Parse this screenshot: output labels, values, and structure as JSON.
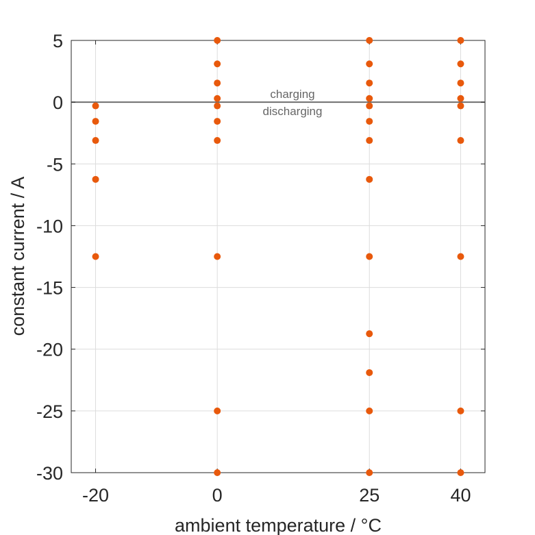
{
  "chart_data": {
    "type": "scatter",
    "title": "",
    "xlabel": "ambient temperature / °C",
    "ylabel": "constant current / A",
    "x_ticks": [
      -20,
      0,
      25,
      40
    ],
    "y_ticks": [
      5,
      0,
      -5,
      -10,
      -15,
      -20,
      -25,
      -30
    ],
    "xlim": [
      -24,
      44
    ],
    "ylim": [
      -30,
      5
    ],
    "grid": true,
    "marker_color": "#E8590C",
    "reference_line": {
      "y": 0,
      "color": "#6e6e6e"
    },
    "annotations": {
      "above": "charging",
      "below": "discharging"
    },
    "series": [
      {
        "points": [
          {
            "x": -20,
            "y": -0.3
          },
          {
            "x": -20,
            "y": -1.55
          },
          {
            "x": -20,
            "y": -3.1
          },
          {
            "x": -20,
            "y": -6.25
          },
          {
            "x": -20,
            "y": -12.5
          },
          {
            "x": 0,
            "y": 5
          },
          {
            "x": 0,
            "y": 3.1
          },
          {
            "x": 0,
            "y": 1.55
          },
          {
            "x": 0,
            "y": 0.3
          },
          {
            "x": 0,
            "y": -0.3
          },
          {
            "x": 0,
            "y": -1.55
          },
          {
            "x": 0,
            "y": -3.1
          },
          {
            "x": 0,
            "y": -12.5
          },
          {
            "x": 0,
            "y": -25
          },
          {
            "x": 0,
            "y": -30
          },
          {
            "x": 25,
            "y": 5
          },
          {
            "x": 25,
            "y": 3.1
          },
          {
            "x": 25,
            "y": 1.55
          },
          {
            "x": 25,
            "y": 0.3
          },
          {
            "x": 25,
            "y": -0.3
          },
          {
            "x": 25,
            "y": -1.55
          },
          {
            "x": 25,
            "y": -3.1
          },
          {
            "x": 25,
            "y": -6.25
          },
          {
            "x": 25,
            "y": -12.5
          },
          {
            "x": 25,
            "y": -18.75
          },
          {
            "x": 25,
            "y": -21.9
          },
          {
            "x": 25,
            "y": -25
          },
          {
            "x": 25,
            "y": -30
          },
          {
            "x": 40,
            "y": 5
          },
          {
            "x": 40,
            "y": 3.1
          },
          {
            "x": 40,
            "y": 1.55
          },
          {
            "x": 40,
            "y": 0.3
          },
          {
            "x": 40,
            "y": -0.3
          },
          {
            "x": 40,
            "y": -3.1
          },
          {
            "x": 40,
            "y": -12.5
          },
          {
            "x": 40,
            "y": -25
          },
          {
            "x": 40,
            "y": -30
          }
        ]
      }
    ]
  }
}
